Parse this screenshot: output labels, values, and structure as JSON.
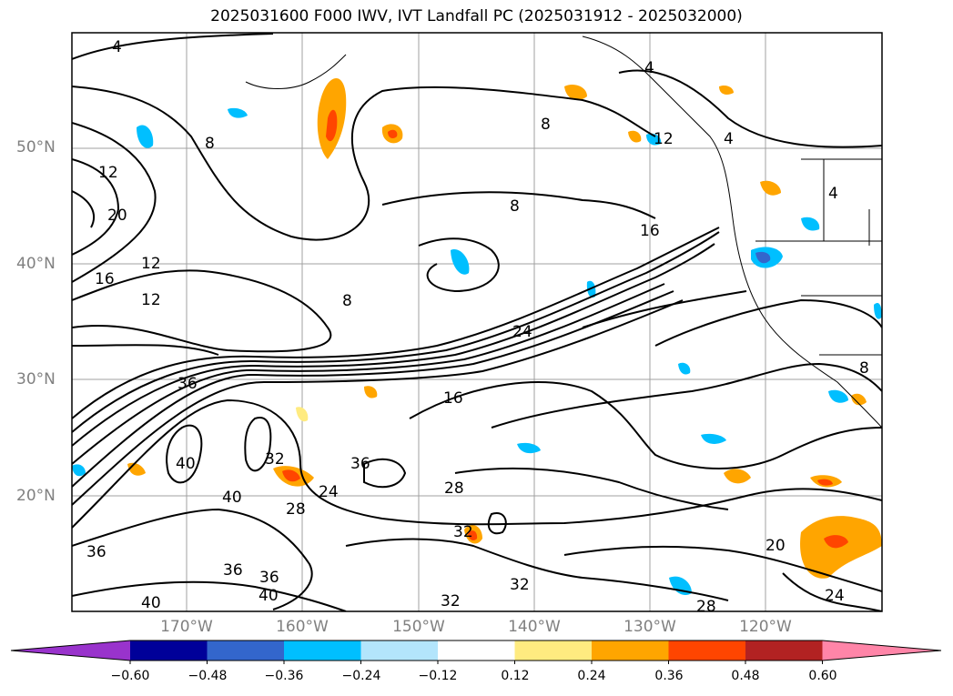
{
  "title": "2025031600 F000 IWV, IVT Landfall PC (2025031912 - 2025032000)",
  "lat_labels": [
    "50°N",
    "40°N",
    "30°N",
    "20°N"
  ],
  "lon_labels": [
    "170°W",
    "160°W",
    "150°W",
    "140°W",
    "130°W",
    "120°W"
  ],
  "colorbar": {
    "ticks": [
      "−0.60",
      "−0.48",
      "−0.36",
      "−0.24",
      "−0.12",
      "0.12",
      "0.24",
      "0.36",
      "0.48",
      "0.60"
    ],
    "colors": [
      "#9933cc",
      "#000099",
      "#3366cc",
      "#00bfff",
      "#b3e5fc",
      "#ffffff",
      "#ffeb80",
      "#ffa500",
      "#ff4500",
      "#b22222",
      "#ff85a8"
    ]
  },
  "contour_labels": [
    "4",
    "4",
    "4",
    "8",
    "8",
    "8",
    "8",
    "12",
    "12",
    "12",
    "12",
    "16",
    "16",
    "16",
    "20",
    "20",
    "24",
    "24",
    "24",
    "28",
    "28",
    "28",
    "32",
    "32",
    "32",
    "32",
    "36",
    "36",
    "36",
    "36",
    "36",
    "40",
    "40",
    "40",
    "40",
    "4",
    "8"
  ]
}
